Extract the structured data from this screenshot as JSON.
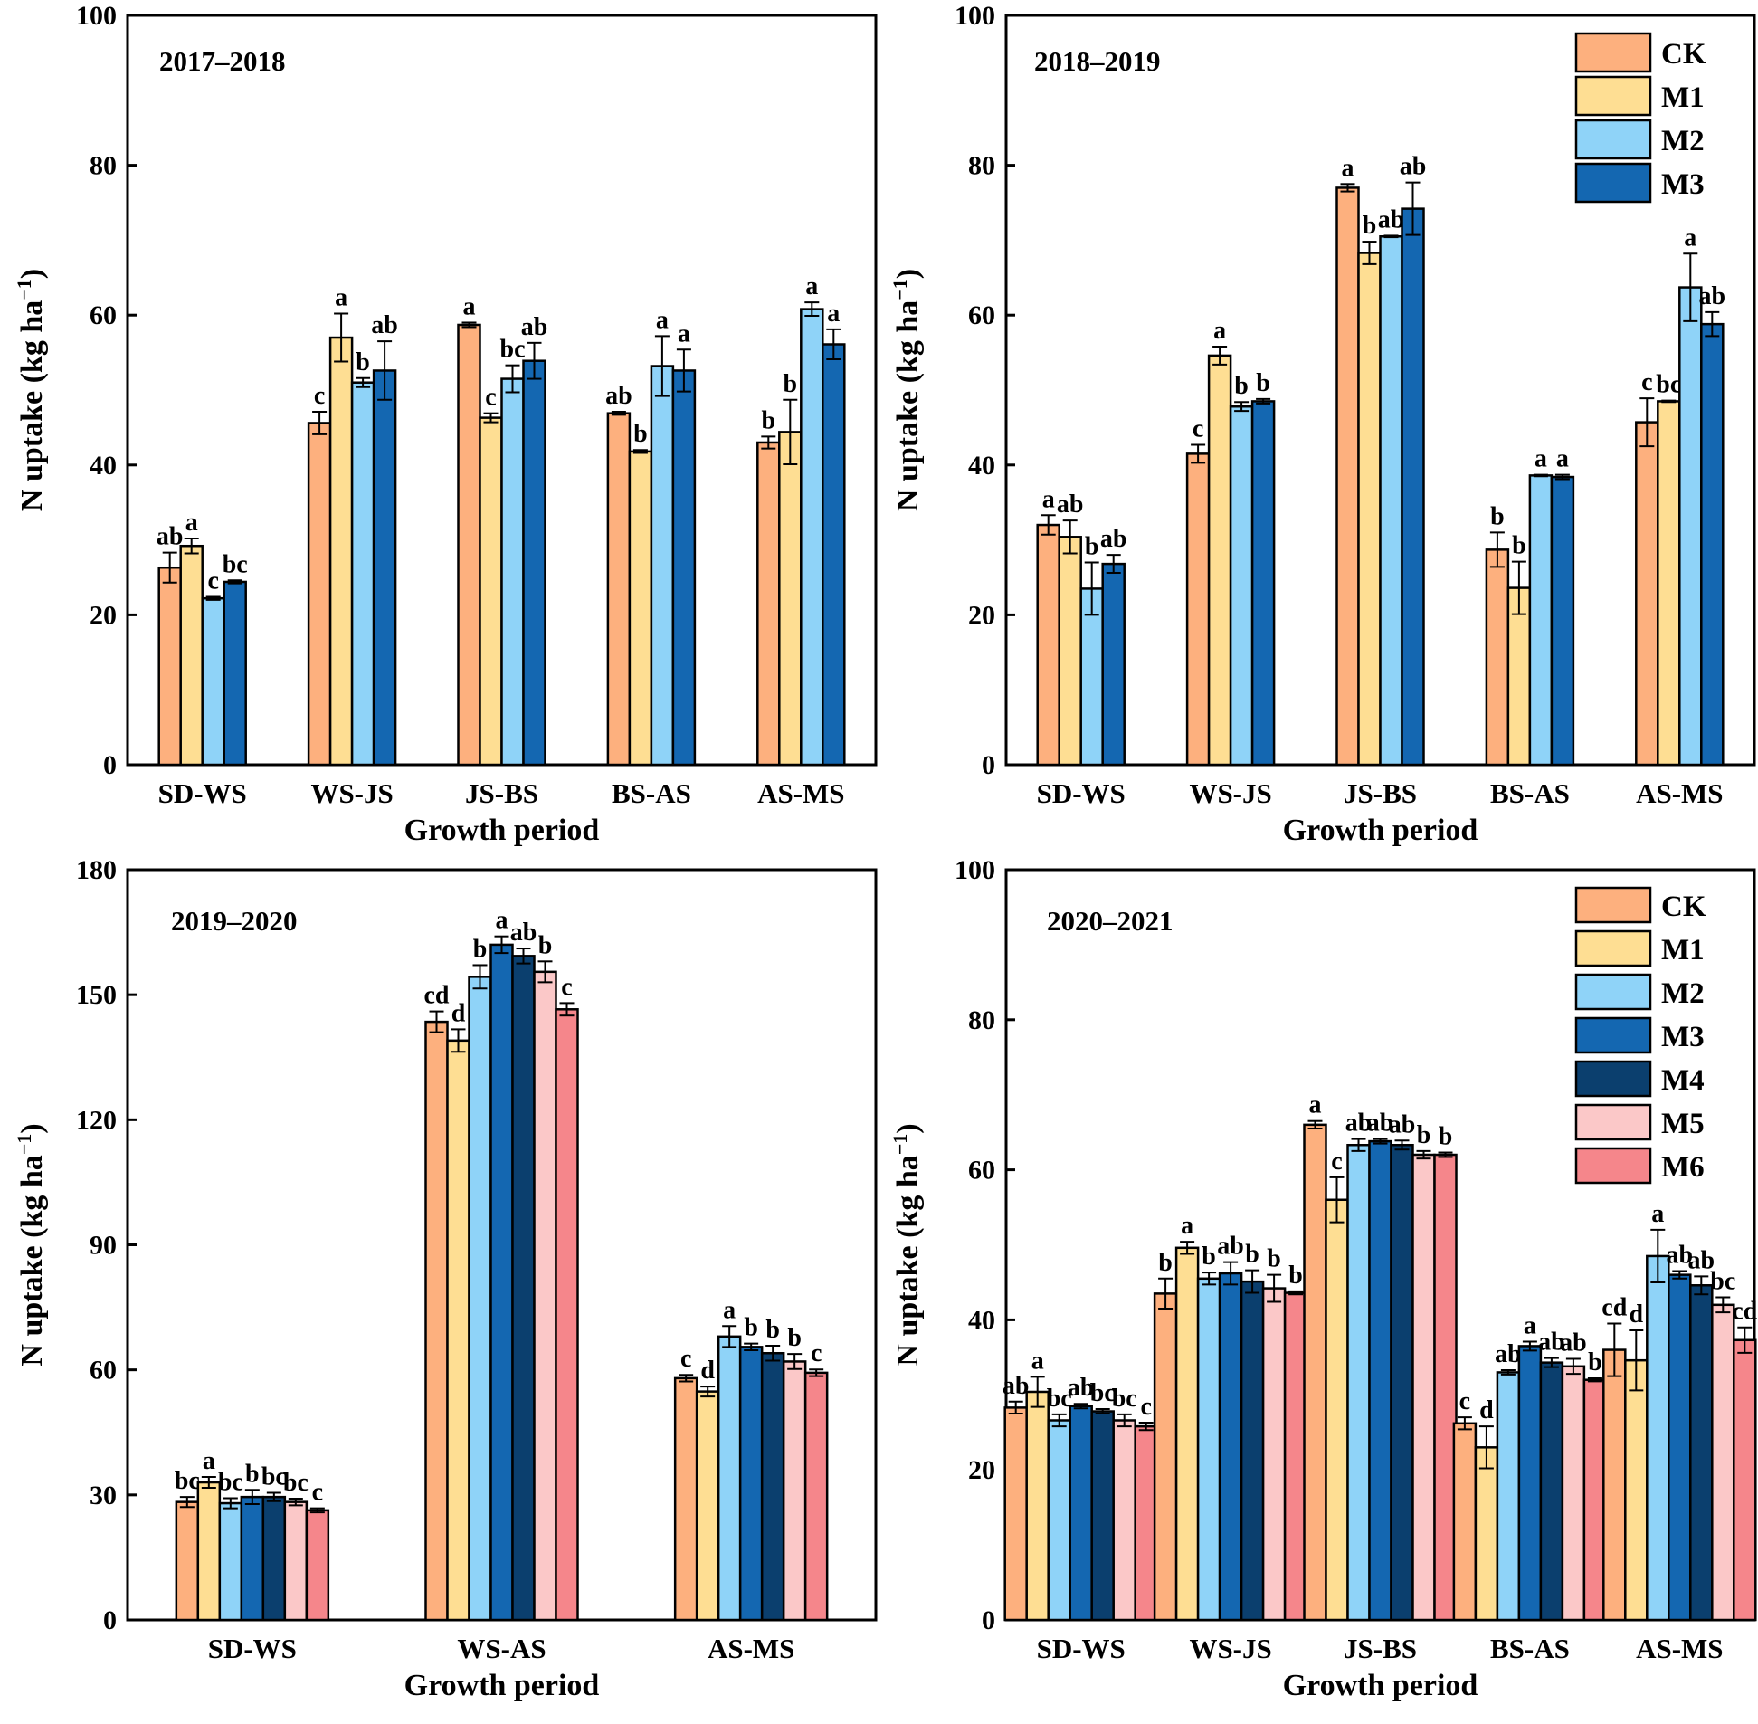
{
  "colors": {
    "CK": "#FDB07E",
    "M1": "#FEDE93",
    "M2": "#8FD3F8",
    "M3": "#1467B1",
    "M4": "#0B3F6E",
    "M5": "#FBC8C8",
    "M6": "#F5868B"
  },
  "chart_data": [
    {
      "type": "bar",
      "title": "2017–2018",
      "xlabel": "Growth period",
      "ylabel": "N uptake (kg ha⁻¹)",
      "ylim": [
        0,
        100
      ],
      "yticks": [
        0,
        20,
        40,
        60,
        80,
        100
      ],
      "categories": [
        "SD-WS",
        "WS-JS",
        "JS-BS",
        "BS-AS",
        "AS-MS"
      ],
      "legend": false,
      "series": [
        {
          "name": "CK",
          "values": [
            26.3,
            45.6,
            58.7,
            46.9,
            43.0
          ],
          "errors": [
            2.0,
            1.5,
            0.3,
            0.2,
            0.8
          ],
          "letters": [
            "ab",
            "c",
            "a",
            "ab",
            "b"
          ]
        },
        {
          "name": "M1",
          "values": [
            29.2,
            57.0,
            46.3,
            41.8,
            44.4
          ],
          "errors": [
            1.0,
            3.2,
            0.6,
            0.2,
            4.3
          ],
          "letters": [
            "a",
            "a",
            "c",
            "b",
            "b"
          ]
        },
        {
          "name": "M2",
          "values": [
            22.2,
            51.0,
            51.5,
            53.2,
            60.8
          ],
          "errors": [
            0.2,
            0.6,
            1.8,
            4.0,
            0.9
          ],
          "letters": [
            "c",
            "b",
            "bc",
            "a",
            "a"
          ]
        },
        {
          "name": "M3",
          "values": [
            24.4,
            52.6,
            53.9,
            52.6,
            56.1
          ],
          "errors": [
            0.2,
            3.9,
            2.4,
            2.8,
            2.0
          ],
          "letters": [
            "bc",
            "ab",
            "ab",
            "a",
            "a"
          ]
        }
      ]
    },
    {
      "type": "bar",
      "title": "2018–2019",
      "xlabel": "Growth period",
      "ylabel": "N uptake (kg ha⁻¹)",
      "ylim": [
        0,
        100
      ],
      "yticks": [
        0,
        20,
        40,
        60,
        80,
        100
      ],
      "categories": [
        "SD-WS",
        "WS-JS",
        "JS-BS",
        "BS-AS",
        "AS-MS"
      ],
      "legend": true,
      "series": [
        {
          "name": "CK",
          "values": [
            32.0,
            41.5,
            77.0,
            28.7,
            45.7
          ],
          "errors": [
            1.3,
            1.2,
            0.5,
            2.3,
            3.2
          ],
          "letters": [
            "a",
            "c",
            "a",
            "b",
            "c"
          ]
        },
        {
          "name": "M1",
          "values": [
            30.4,
            54.6,
            68.3,
            23.6,
            48.5
          ],
          "errors": [
            2.2,
            1.2,
            1.5,
            3.5,
            0.1
          ],
          "letters": [
            "ab",
            "a",
            "b",
            "b",
            "bc"
          ]
        },
        {
          "name": "M2",
          "values": [
            23.5,
            47.8,
            70.5,
            38.6,
            63.7
          ],
          "errors": [
            3.5,
            0.6,
            0.1,
            0.1,
            4.5
          ],
          "letters": [
            "b",
            "b",
            "ab",
            "a",
            "a"
          ]
        },
        {
          "name": "M3",
          "values": [
            26.8,
            48.5,
            74.2,
            38.4,
            58.8
          ],
          "errors": [
            1.2,
            0.3,
            3.5,
            0.3,
            1.6
          ],
          "letters": [
            "ab",
            "b",
            "ab",
            "a",
            "ab"
          ]
        }
      ]
    },
    {
      "type": "bar",
      "title": "2019–2020",
      "xlabel": "Growth period",
      "ylabel": "N uptake (kg ha⁻¹)",
      "ylim": [
        0,
        180
      ],
      "yticks": [
        0,
        30,
        60,
        90,
        120,
        150,
        180
      ],
      "categories": [
        "SD-WS",
        "WS-AS",
        "AS-MS"
      ],
      "legend": false,
      "series": [
        {
          "name": "CK",
          "values": [
            28.3,
            143.5,
            58.0
          ],
          "errors": [
            1.2,
            2.5,
            0.8
          ],
          "letters": [
            "bc",
            "cd",
            "c"
          ]
        },
        {
          "name": "M1",
          "values": [
            33.0,
            139.0,
            54.8
          ],
          "errors": [
            1.3,
            2.7,
            1.2
          ],
          "letters": [
            "a",
            "d",
            "d"
          ]
        },
        {
          "name": "M2",
          "values": [
            28.0,
            154.3,
            68.0
          ],
          "errors": [
            1.2,
            2.8,
            2.5
          ],
          "letters": [
            "bc",
            "b",
            "a"
          ]
        },
        {
          "name": "M3",
          "values": [
            29.5,
            162.0,
            65.5
          ],
          "errors": [
            1.7,
            2.0,
            0.8
          ],
          "letters": [
            "b",
            "a",
            "b"
          ]
        },
        {
          "name": "M4",
          "values": [
            29.5,
            159.3,
            64.0
          ],
          "errors": [
            1.0,
            1.8,
            1.8
          ],
          "letters": [
            "bc",
            "ab",
            "b"
          ]
        },
        {
          "name": "M5",
          "values": [
            28.3,
            155.5,
            62.0
          ],
          "errors": [
            0.8,
            2.5,
            1.8
          ],
          "letters": [
            "bc",
            "b",
            "b"
          ]
        },
        {
          "name": "M6",
          "values": [
            26.3,
            146.5,
            59.3
          ],
          "errors": [
            0.5,
            1.5,
            0.8
          ],
          "letters": [
            "c",
            "c",
            "c"
          ]
        }
      ]
    },
    {
      "type": "bar",
      "title": "2020–2021",
      "xlabel": "Growth period",
      "ylabel": "N uptake (kg ha⁻¹)",
      "ylim": [
        0,
        100
      ],
      "yticks": [
        0,
        20,
        40,
        60,
        80,
        100
      ],
      "categories": [
        "SD-WS",
        "WS-JS",
        "JS-BS",
        "BS-AS",
        "AS-MS"
      ],
      "legend": true,
      "series": [
        {
          "name": "CK",
          "values": [
            28.3,
            43.5,
            66.0,
            26.2,
            36.0
          ],
          "errors": [
            0.8,
            2.0,
            0.5,
            0.8,
            3.5
          ],
          "letters": [
            "ab",
            "b",
            "a",
            "c",
            "cd"
          ]
        },
        {
          "name": "M1",
          "values": [
            30.4,
            49.6,
            56.0,
            23.0,
            34.6
          ],
          "errors": [
            2.0,
            0.8,
            3.0,
            2.8,
            4.0
          ],
          "letters": [
            "a",
            "a",
            "c",
            "d",
            "d"
          ]
        },
        {
          "name": "M2",
          "values": [
            26.6,
            45.5,
            63.3,
            33.0,
            48.5
          ],
          "errors": [
            0.8,
            0.8,
            0.8,
            0.3,
            3.5
          ],
          "letters": [
            "bc",
            "b",
            "ab",
            "ab",
            "a"
          ]
        },
        {
          "name": "M3",
          "values": [
            28.5,
            46.2,
            63.8,
            36.5,
            46.0
          ],
          "errors": [
            0.3,
            1.5,
            0.3,
            0.6,
            0.5
          ],
          "letters": [
            "ab",
            "ab",
            "ab",
            "a",
            "ab"
          ]
        },
        {
          "name": "M4",
          "values": [
            27.8,
            45.1,
            63.3,
            34.3,
            44.6
          ],
          "errors": [
            0.3,
            1.5,
            0.6,
            0.6,
            1.2
          ],
          "letters": [
            "bc",
            "b",
            "ab",
            "ab",
            "ab"
          ]
        },
        {
          "name": "M5",
          "values": [
            26.6,
            44.2,
            62.0,
            33.8,
            42.0
          ],
          "errors": [
            0.8,
            1.8,
            0.5,
            1.0,
            1.0
          ],
          "letters": [
            "bc",
            "b",
            "b",
            "ab",
            "bc"
          ]
        },
        {
          "name": "M6",
          "values": [
            25.8,
            43.6,
            62.0,
            32.0,
            37.3
          ],
          "errors": [
            0.5,
            0.2,
            0.3,
            0.2,
            1.7
          ],
          "letters": [
            "c",
            "b",
            "b",
            "b",
            "cd"
          ]
        }
      ]
    }
  ]
}
